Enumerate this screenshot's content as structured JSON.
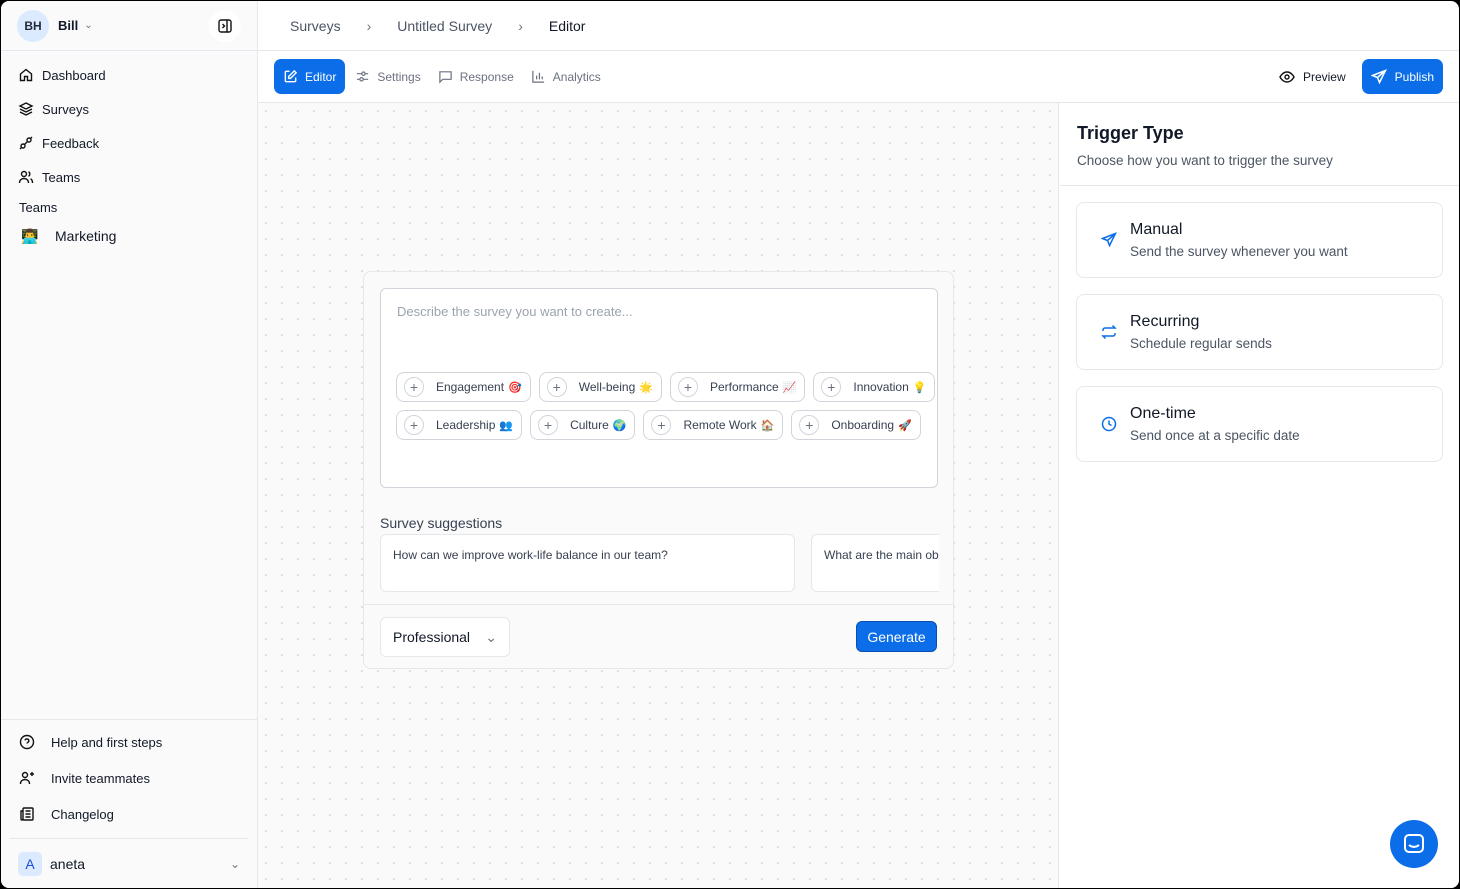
{
  "sidebar": {
    "user_initials": "BH",
    "user_name": "Bill",
    "nav": [
      {
        "label": "Dashboard",
        "icon": "home-icon"
      },
      {
        "label": "Surveys",
        "icon": "layers-icon"
      },
      {
        "label": "Feedback",
        "icon": "plug-icon"
      },
      {
        "label": "Teams",
        "icon": "users-icon"
      }
    ],
    "teams_heading": "Teams",
    "teams": [
      {
        "label": "Marketing",
        "emoji": "👨‍💻"
      }
    ],
    "bottom": [
      {
        "label": "Help and first steps",
        "icon": "help-circle-icon"
      },
      {
        "label": "Invite teammates",
        "icon": "user-plus-icon"
      },
      {
        "label": "Changelog",
        "icon": "newspaper-icon"
      }
    ],
    "workspace_initial": "A",
    "workspace_name": "aneta"
  },
  "breadcrumb": [
    "Surveys",
    "Untitled Survey",
    "Editor"
  ],
  "tabs": [
    {
      "label": "Editor",
      "active": true
    },
    {
      "label": "Settings"
    },
    {
      "label": "Response"
    },
    {
      "label": "Analytics"
    }
  ],
  "toolbar": {
    "preview": "Preview",
    "publish": "Publish"
  },
  "editor": {
    "placeholder": "Describe the survey you want to create...",
    "chips": [
      {
        "label": "Engagement",
        "emoji": "🎯"
      },
      {
        "label": "Well-being",
        "emoji": "🌟"
      },
      {
        "label": "Performance",
        "emoji": "📈"
      },
      {
        "label": "Innovation",
        "emoji": "💡"
      },
      {
        "label": "Leadership",
        "emoji": "👥"
      },
      {
        "label": "Culture",
        "emoji": "🌍"
      },
      {
        "label": "Remote Work",
        "emoji": "🏠"
      },
      {
        "label": "Onboarding",
        "emoji": "🚀"
      }
    ],
    "suggestions_title": "Survey suggestions",
    "suggestions": [
      "How can we improve work-life balance in our team?",
      "What are the main ob"
    ],
    "tone": "Professional",
    "generate": "Generate"
  },
  "trigger": {
    "title": "Trigger Type",
    "subtitle": "Choose how you want to trigger the survey",
    "options": [
      {
        "title": "Manual",
        "desc": "Send the survey whenever you want",
        "icon": "send-icon"
      },
      {
        "title": "Recurring",
        "desc": "Schedule regular sends",
        "icon": "repeat-icon"
      },
      {
        "title": "One-time",
        "desc": "Send once at a specific date",
        "icon": "clock-icon"
      }
    ]
  },
  "colors": {
    "accent": "#0b6ee8"
  }
}
